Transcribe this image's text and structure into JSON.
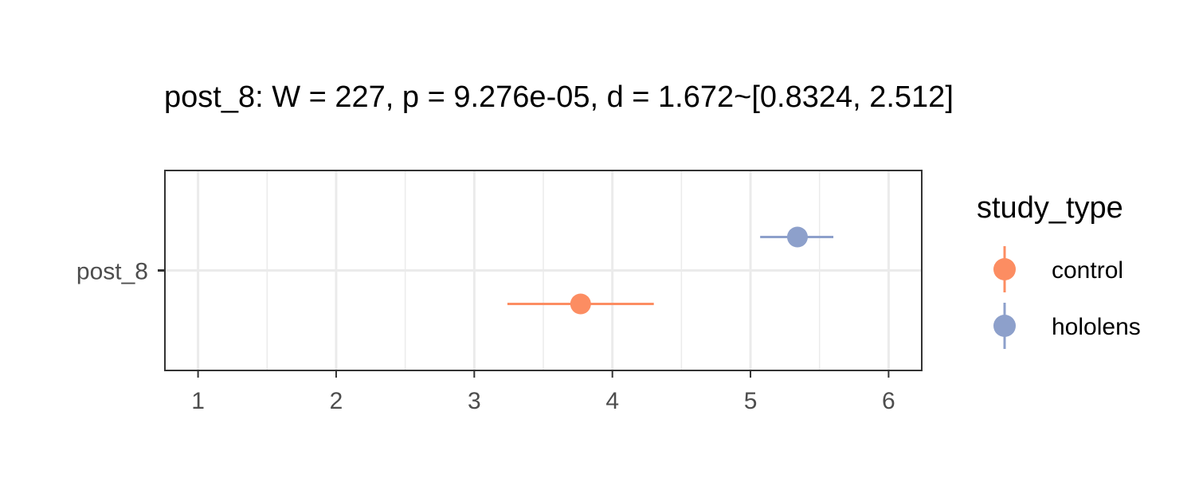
{
  "chart_data": {
    "type": "scatter",
    "title": "post_8: W = 227, p = 9.276e-05, d = 1.672~[0.8324, 2.512]",
    "xlabel": "",
    "ylabel": "",
    "xlim": [
      0.76,
      6.24
    ],
    "x_ticks": [
      "1",
      "2",
      "3",
      "4",
      "5",
      "6"
    ],
    "y_categories": [
      "post_8"
    ],
    "grid": true,
    "legend": {
      "title": "study_type",
      "position": "right",
      "entries": [
        "control",
        "hololens"
      ]
    },
    "series": [
      {
        "name": "control",
        "color": "#FC8D62",
        "category": "post_8",
        "x": 3.77,
        "xmin": 3.24,
        "xmax": 4.3
      },
      {
        "name": "hololens",
        "color": "#8DA0CB",
        "category": "post_8",
        "x": 5.34,
        "xmin": 5.07,
        "xmax": 5.6
      }
    ]
  }
}
